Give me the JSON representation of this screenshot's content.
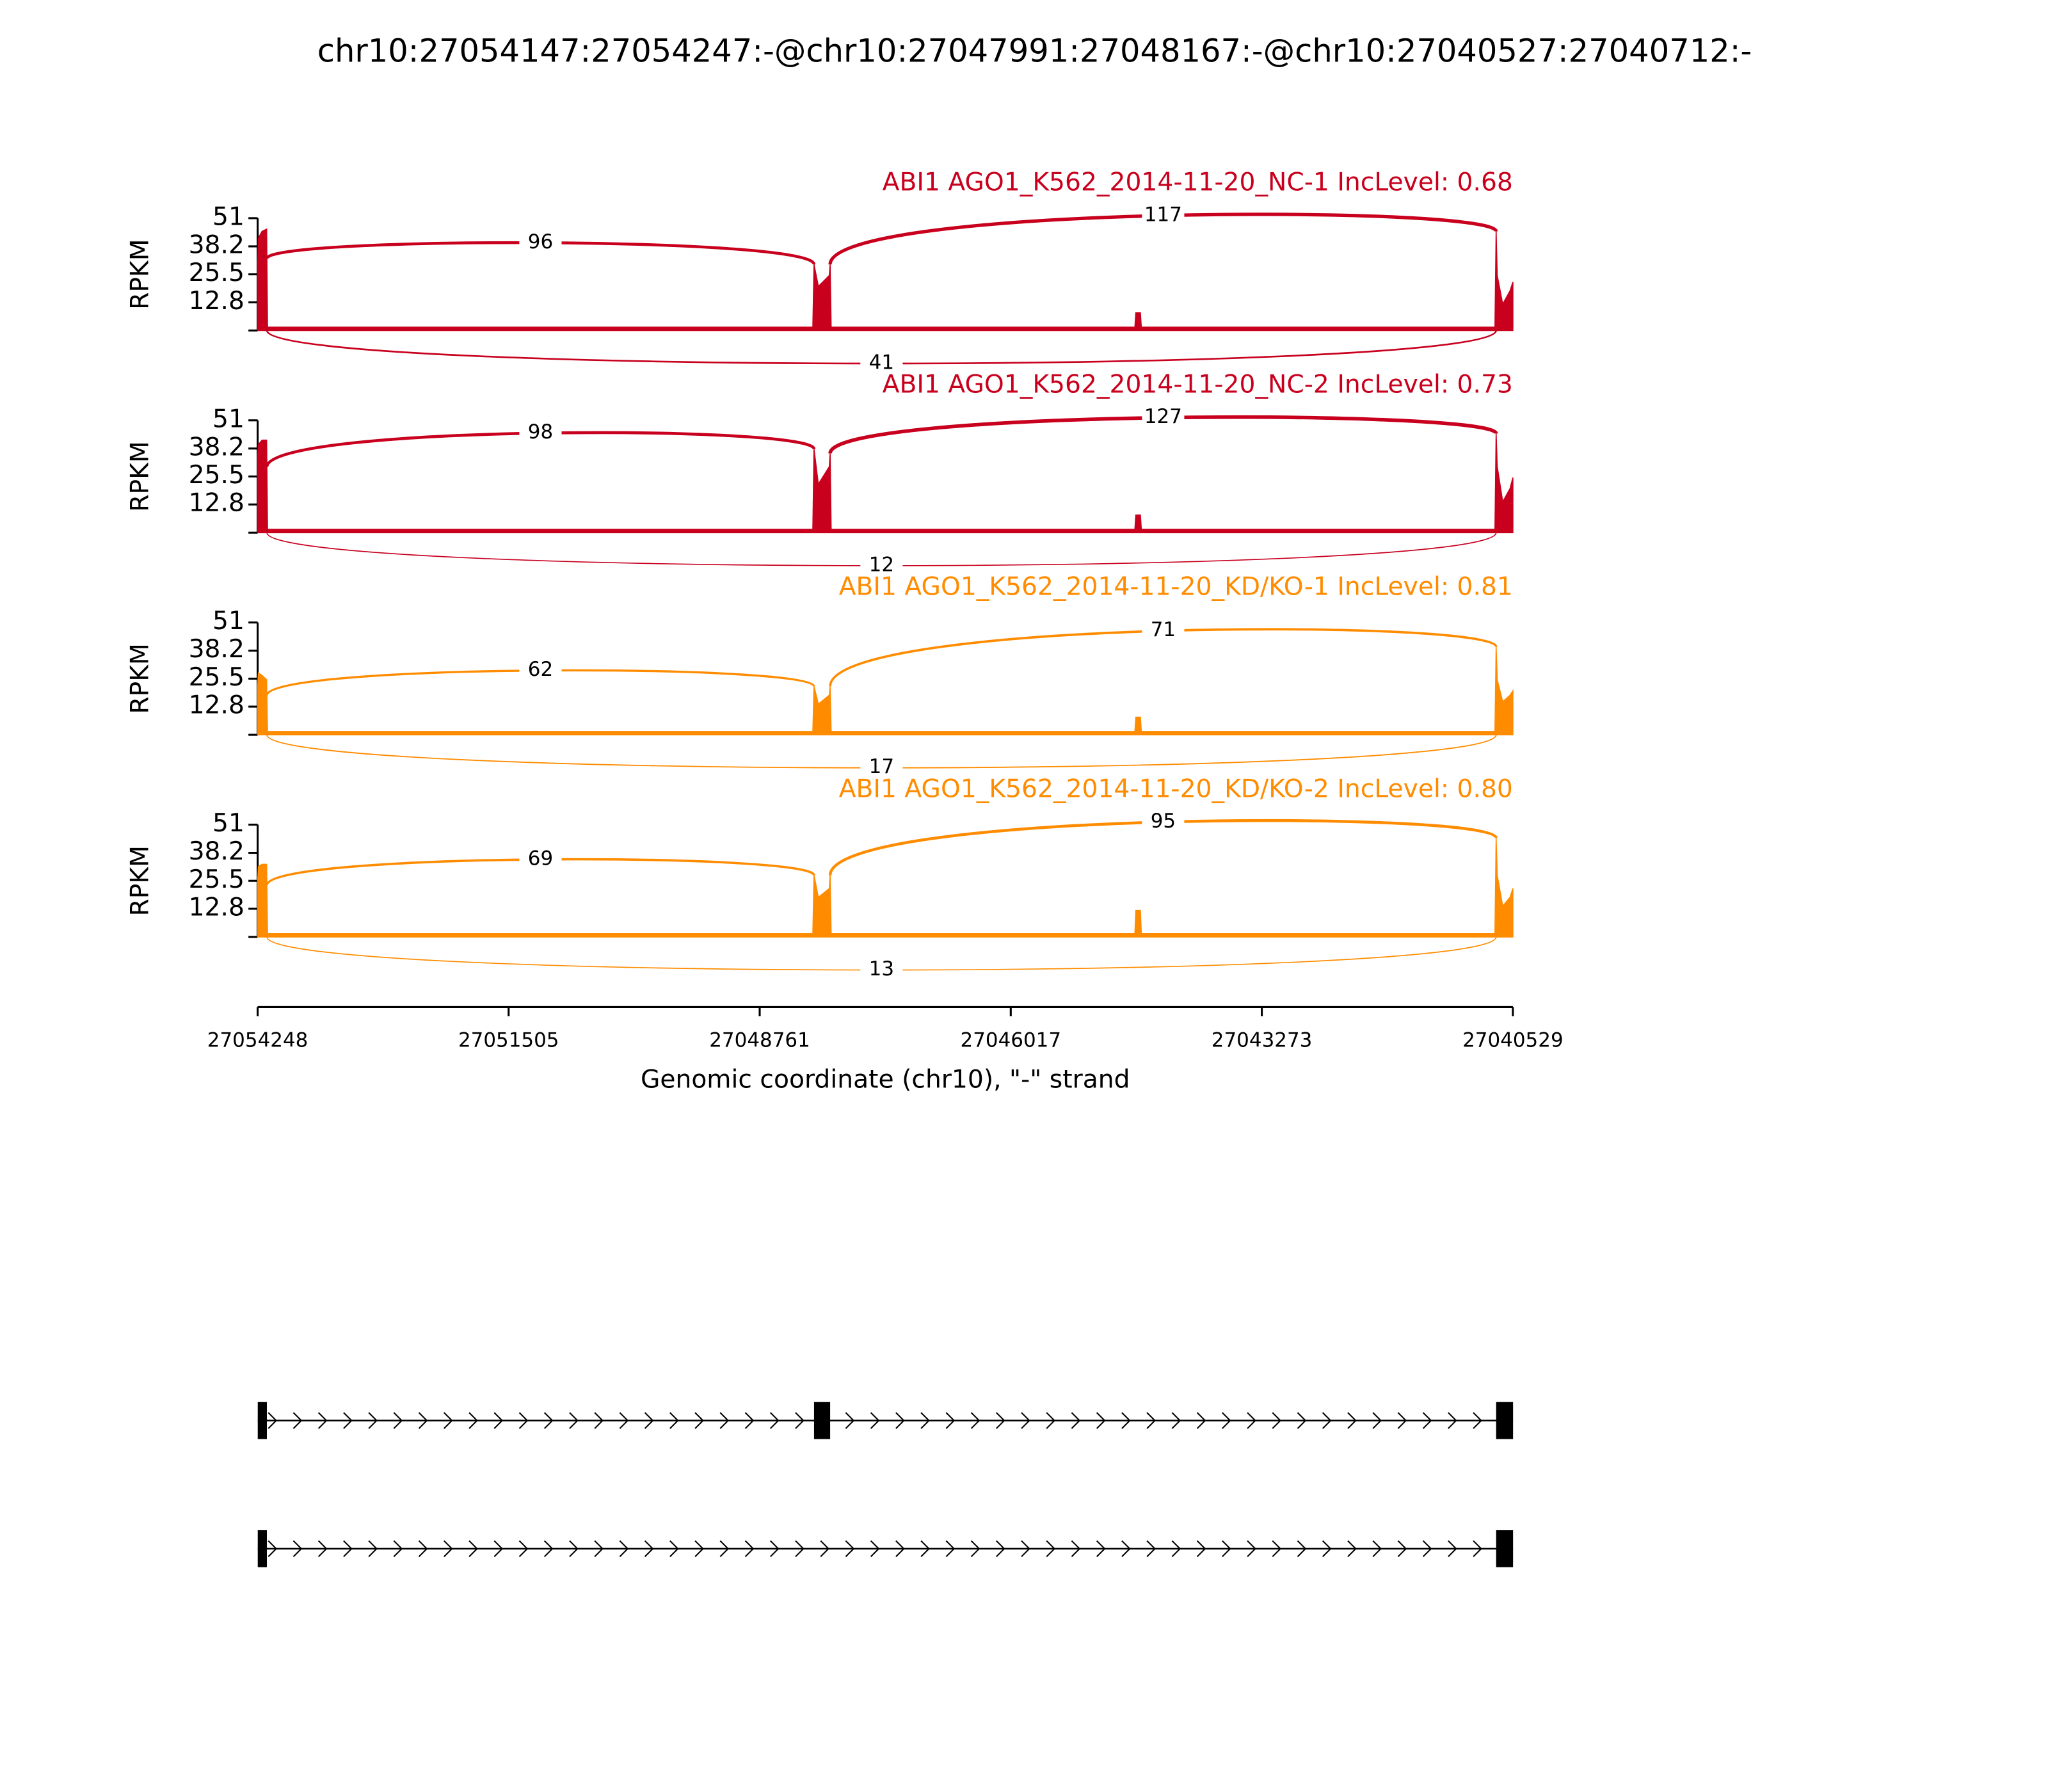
{
  "chart_data": {
    "type": "sashimi",
    "title": "chr10:27054147:27054247:-@chr10:27047991:27048167:-@chr10:27040527:27040712:-",
    "xlabel": "Genomic coordinate (chr10), \"-\" strand",
    "ylabel": "RPKM",
    "xlim": [
      27054248,
      27040529
    ],
    "xticks": [
      27054248,
      27051505,
      27048761,
      27046017,
      27043273,
      27040529
    ],
    "ylim": [
      0,
      51
    ],
    "yticks": [
      12.8,
      25.5,
      38.2,
      51
    ],
    "exons": [
      [
        27054147,
        27054247
      ],
      [
        27047991,
        27048167
      ],
      [
        27040527,
        27040712
      ]
    ],
    "coverage_x": [
      27054248,
      27054240,
      27054200,
      27054150,
      27054140,
      27048180,
      27048167,
      27048120,
      27048000,
      27047991,
      27047980,
      27044660,
      27044650,
      27044600,
      27044590,
      27040725,
      27040712,
      27040700,
      27040640,
      27040560,
      27040529
    ],
    "panels": [
      {
        "label": "ABI1 AGO1_K562_2014-11-20_NC-1 IncLevel: 0.68",
        "color": "#c8001e",
        "inclusion_counts": [
          96,
          117
        ],
        "skipping_count": 41,
        "coverage": [
          30,
          42,
          45,
          46,
          1.5,
          1.5,
          30,
          20,
          25,
          30,
          1.5,
          1.5,
          8,
          8,
          1.5,
          1.5,
          45,
          25,
          12,
          18,
          22
        ]
      },
      {
        "label": "ABI1 AGO1_K562_2014-11-20_NC-2 IncLevel: 0.73",
        "color": "#c8001e",
        "inclusion_counts": [
          98,
          127
        ],
        "skipping_count": 12,
        "coverage": [
          35,
          40,
          42,
          42,
          1.5,
          1.5,
          38,
          22,
          30,
          36,
          1.5,
          1.5,
          8,
          8,
          1.5,
          1.5,
          45,
          30,
          14,
          20,
          25
        ]
      },
      {
        "label": "ABI1 AGO1_K562_2014-11-20_KD/KO-1 IncLevel: 0.81",
        "color": "#ff8c00",
        "inclusion_counts": [
          62,
          71
        ],
        "skipping_count": 17,
        "coverage": [
          22,
          28,
          27,
          25,
          1.5,
          1.5,
          22,
          14,
          18,
          22,
          1.5,
          1.5,
          8,
          8,
          1.5,
          1.5,
          40,
          25,
          15,
          18,
          20
        ]
      },
      {
        "label": "ABI1 AGO1_K562_2014-11-20_KD/KO-2 IncLevel: 0.80",
        "color": "#ff8c00",
        "inclusion_counts": [
          69,
          95
        ],
        "skipping_count": 13,
        "coverage": [
          25,
          32,
          33,
          33,
          1.5,
          1.5,
          28,
          18,
          22,
          28,
          1.5,
          1.5,
          12,
          12,
          1.5,
          1.5,
          45,
          28,
          14,
          18,
          22
        ]
      }
    ],
    "transcripts": [
      [
        [
          27054147,
          27054247
        ],
        [
          27047991,
          27048167
        ],
        [
          27040527,
          27040712
        ]
      ],
      [
        [
          27054147,
          27054247
        ],
        [
          27040527,
          27040712
        ]
      ]
    ]
  }
}
